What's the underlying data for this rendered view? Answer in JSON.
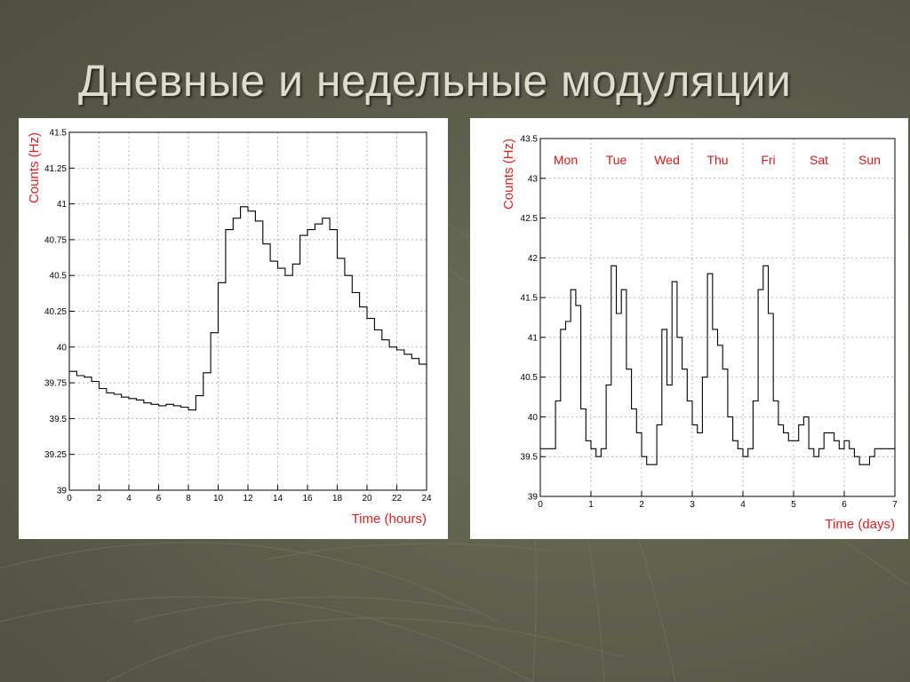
{
  "slide": {
    "title": "Дневные и недельные модуляции"
  },
  "colors": {
    "label_red": "#e02020",
    "line": "#000000",
    "grid": "#9a9a9a"
  },
  "chart_data": [
    {
      "type": "line",
      "title": "",
      "xlabel": "Time (hours)",
      "ylabel": "Counts (Hz)",
      "xlim": [
        0,
        24
      ],
      "ylim": [
        39,
        41.5
      ],
      "x_ticks": [
        0,
        2,
        4,
        6,
        8,
        10,
        12,
        14,
        16,
        18,
        20,
        22,
        24
      ],
      "y_ticks": [
        39,
        39.25,
        39.5,
        39.75,
        40,
        40.25,
        40.5,
        40.75,
        41,
        41.25,
        41.5
      ],
      "grid": true,
      "step": true,
      "series": [
        {
          "x": [
            0,
            0.5,
            1,
            1.5,
            2,
            2.5,
            3,
            3.5,
            4,
            4.5,
            5,
            5.5,
            6,
            6.5,
            7,
            7.5,
            8,
            8.5,
            9,
            9.5,
            10,
            10.5,
            11,
            11.5,
            12,
            12.5,
            13,
            13.5,
            14,
            14.5,
            15,
            15.5,
            16,
            16.5,
            17,
            17.5,
            18,
            18.5,
            19,
            19.5,
            20,
            20.5,
            21,
            21.5,
            22,
            22.5,
            23,
            23.5,
            24
          ],
          "values": [
            39.83,
            39.8,
            39.79,
            39.76,
            39.71,
            39.68,
            39.67,
            39.65,
            39.64,
            39.63,
            39.61,
            39.6,
            39.59,
            39.6,
            39.59,
            39.58,
            39.56,
            39.66,
            39.82,
            40.1,
            40.45,
            40.82,
            40.9,
            40.98,
            40.95,
            40.88,
            40.72,
            40.6,
            40.55,
            40.5,
            40.58,
            40.78,
            40.82,
            40.86,
            40.9,
            40.82,
            40.62,
            40.5,
            40.38,
            40.28,
            40.2,
            40.12,
            40.05,
            40.0,
            39.98,
            39.95,
            39.92,
            39.88,
            39.85
          ]
        }
      ]
    },
    {
      "type": "line",
      "title": "",
      "xlabel": "Time (days)",
      "ylabel": "Counts (Hz)",
      "xlim": [
        0,
        7
      ],
      "ylim": [
        39,
        43.5
      ],
      "x_ticks": [
        0,
        1,
        2,
        3,
        4,
        5,
        6,
        7
      ],
      "y_ticks": [
        39,
        39.5,
        40,
        40.5,
        41,
        41.5,
        42,
        42.5,
        43,
        43.5
      ],
      "grid": true,
      "step": true,
      "day_labels": [
        "Mon",
        "Tue",
        "Wed",
        "Thu",
        "Fri",
        "Sat",
        "Sun"
      ],
      "series": [
        {
          "x": [
            0,
            0.1,
            0.2,
            0.3,
            0.4,
            0.5,
            0.6,
            0.7,
            0.8,
            0.9,
            1.0,
            1.1,
            1.2,
            1.3,
            1.4,
            1.5,
            1.6,
            1.7,
            1.8,
            1.9,
            2.0,
            2.1,
            2.2,
            2.3,
            2.4,
            2.5,
            2.6,
            2.7,
            2.8,
            2.9,
            3.0,
            3.1,
            3.2,
            3.3,
            3.4,
            3.5,
            3.6,
            3.7,
            3.8,
            3.9,
            4.0,
            4.1,
            4.2,
            4.3,
            4.4,
            4.5,
            4.6,
            4.7,
            4.8,
            4.9,
            5.0,
            5.1,
            5.2,
            5.3,
            5.4,
            5.5,
            5.6,
            5.7,
            5.8,
            5.9,
            6.0,
            6.1,
            6.2,
            6.3,
            6.4,
            6.5,
            6.6,
            6.7,
            6.8,
            6.9,
            7.0
          ],
          "values": [
            39.6,
            39.6,
            39.6,
            40.2,
            41.1,
            41.2,
            41.6,
            41.4,
            40.1,
            39.7,
            39.6,
            39.5,
            39.6,
            40.4,
            41.9,
            41.3,
            41.6,
            40.6,
            40.1,
            39.8,
            39.5,
            39.4,
            39.4,
            39.9,
            41.1,
            40.4,
            41.7,
            41.0,
            40.6,
            40.2,
            39.9,
            39.8,
            40.5,
            41.8,
            41.1,
            40.9,
            40.6,
            40.0,
            39.7,
            39.6,
            39.5,
            39.6,
            40.2,
            41.6,
            41.9,
            41.3,
            40.2,
            39.9,
            39.8,
            39.7,
            39.7,
            39.9,
            40.0,
            39.6,
            39.5,
            39.6,
            39.8,
            39.8,
            39.7,
            39.6,
            39.7,
            39.6,
            39.5,
            39.4,
            39.4,
            39.5,
            39.6,
            39.6,
            39.6,
            39.6,
            39.6
          ]
        }
      ]
    }
  ]
}
